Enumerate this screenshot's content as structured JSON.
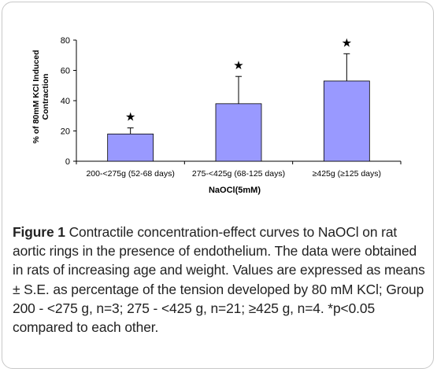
{
  "chart_data": {
    "type": "bar",
    "categories": [
      "200-<275g (52-68 days)",
      "275-<425g (68-125 days)",
      "≥425g (≥125 days)"
    ],
    "values": [
      18,
      38,
      53
    ],
    "errors": [
      4,
      18,
      18
    ],
    "significance_marker": "★",
    "xlabel": "NaOCl(5mM)",
    "ylabel": "% of 80mM KCl Induced Contraction",
    "ylabel_lines": [
      "% of 80mM KCl Induced",
      "Contraction"
    ],
    "ylim": [
      0,
      80
    ],
    "yticks": [
      0,
      20,
      40,
      60,
      80
    ],
    "grid": false,
    "legend": "none",
    "colors": {
      "bar_fill": "#9999ff",
      "bar_stroke": "#000000",
      "axis": "#000000"
    }
  },
  "caption": {
    "label": "Figure 1",
    "text": " Contractile concentration-effect curves to NaOCl on rat aortic rings in the presence of endothelium. The data were obtained in rats of increasing age and weight. Values are expressed as means ± S.E. as percentage of the tension developed by 80 mM KCl; Group 200 - <275 g, n=3; 275 - <425 g, n=21; ≥425 g, n=4. *p<0.05 compared to each other."
  }
}
